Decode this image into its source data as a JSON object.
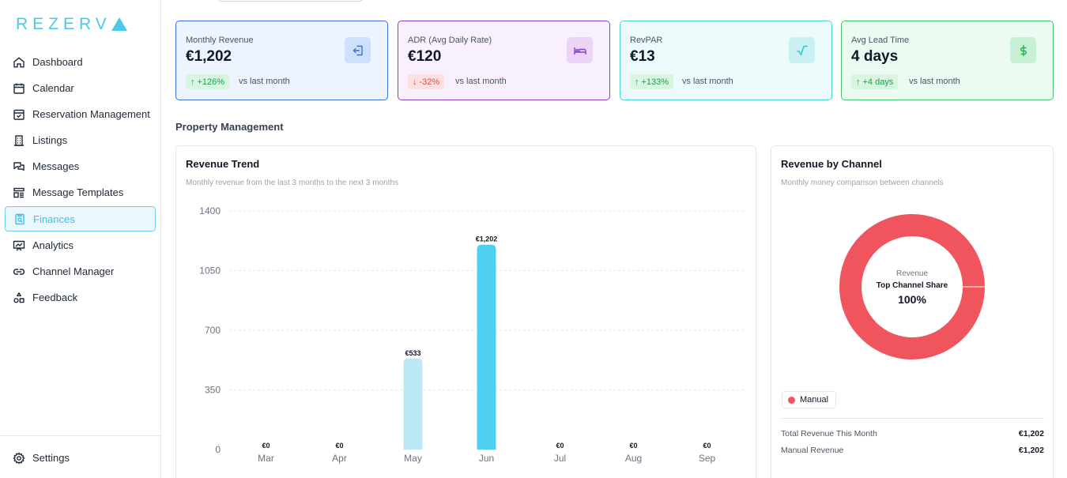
{
  "brand": {
    "name": "REZERV"
  },
  "sidebar": {
    "items": [
      {
        "label": "Dashboard",
        "icon": "home-icon",
        "active": false
      },
      {
        "label": "Calendar",
        "icon": "calendar-icon",
        "active": false
      },
      {
        "label": "Reservation Management",
        "icon": "calendar-check-icon",
        "active": false
      },
      {
        "label": "Listings",
        "icon": "building-icon",
        "active": false
      },
      {
        "label": "Messages",
        "icon": "messages-icon",
        "active": false
      },
      {
        "label": "Message Templates",
        "icon": "template-icon",
        "active": false
      },
      {
        "label": "Finances",
        "icon": "clipboard-search-icon",
        "active": true
      },
      {
        "label": "Analytics",
        "icon": "presentation-chart-icon",
        "active": false
      },
      {
        "label": "Channel Manager",
        "icon": "link-icon",
        "active": false
      },
      {
        "label": "Feedback",
        "icon": "shapes-icon",
        "active": false
      }
    ],
    "settings": {
      "label": "Settings",
      "icon": "gear-icon"
    }
  },
  "metrics": [
    {
      "label": "Monthly Revenue",
      "value": "€1,202",
      "change": "+126%",
      "direction": "up",
      "compare": "vs last month",
      "icon": "sign-in-icon",
      "color": "#3b6fd6"
    },
    {
      "label": "ADR (Avg Daily Rate)",
      "value": "€120",
      "change": "-32%",
      "direction": "down",
      "compare": "vs last month",
      "icon": "bed-icon",
      "color": "#8b3fc7"
    },
    {
      "label": "RevPAR",
      "value": "€13",
      "change": "+133%",
      "direction": "up",
      "compare": "vs last month",
      "icon": "square-root-icon",
      "color": "#2fc7c9"
    },
    {
      "label": "Avg Lead Time",
      "value": "4 days",
      "change": "+4 days",
      "direction": "up",
      "compare": "vs last month",
      "icon": "dollar-icon",
      "color": "#44c46a"
    }
  ],
  "section_title": "Property Management",
  "revenue_trend": {
    "title": "Revenue Trend",
    "subtitle": "Monthly revenue from the last 3 months to the next 3 months"
  },
  "revenue_by_channel": {
    "title": "Revenue by Channel",
    "subtitle": "Monthly money comparison between channels",
    "center_caption": "Revenue",
    "center_label": "Top Channel Share",
    "center_value": "100%",
    "legend": [
      {
        "name": "Manual",
        "color": "#f0555e"
      }
    ],
    "summary": [
      {
        "label": "Total Revenue This Month",
        "value": "€1,202"
      },
      {
        "label": "Manual Revenue",
        "value": "€1,202"
      }
    ]
  },
  "chart_data": [
    {
      "type": "bar",
      "title": "Revenue Trend",
      "categories": [
        "Mar",
        "Apr",
        "May",
        "Jun",
        "Jul",
        "Aug",
        "Sep"
      ],
      "values": [
        0,
        0,
        533,
        1202,
        0,
        0,
        0
      ],
      "data_labels": [
        "€0",
        "€0",
        "€533",
        "€1,202",
        "€0",
        "€0",
        "€0"
      ],
      "highlight_index": 3,
      "colors": {
        "default": "#bde9f6",
        "highlight": "#4fd0f0"
      },
      "yticks": [
        0,
        350,
        700,
        1050,
        1400
      ],
      "ylim": [
        0,
        1400
      ],
      "grid": true
    },
    {
      "type": "pie",
      "title": "Revenue by Channel",
      "labels": [
        "Manual"
      ],
      "values": [
        100
      ],
      "colors": [
        "#f0555e"
      ]
    }
  ]
}
